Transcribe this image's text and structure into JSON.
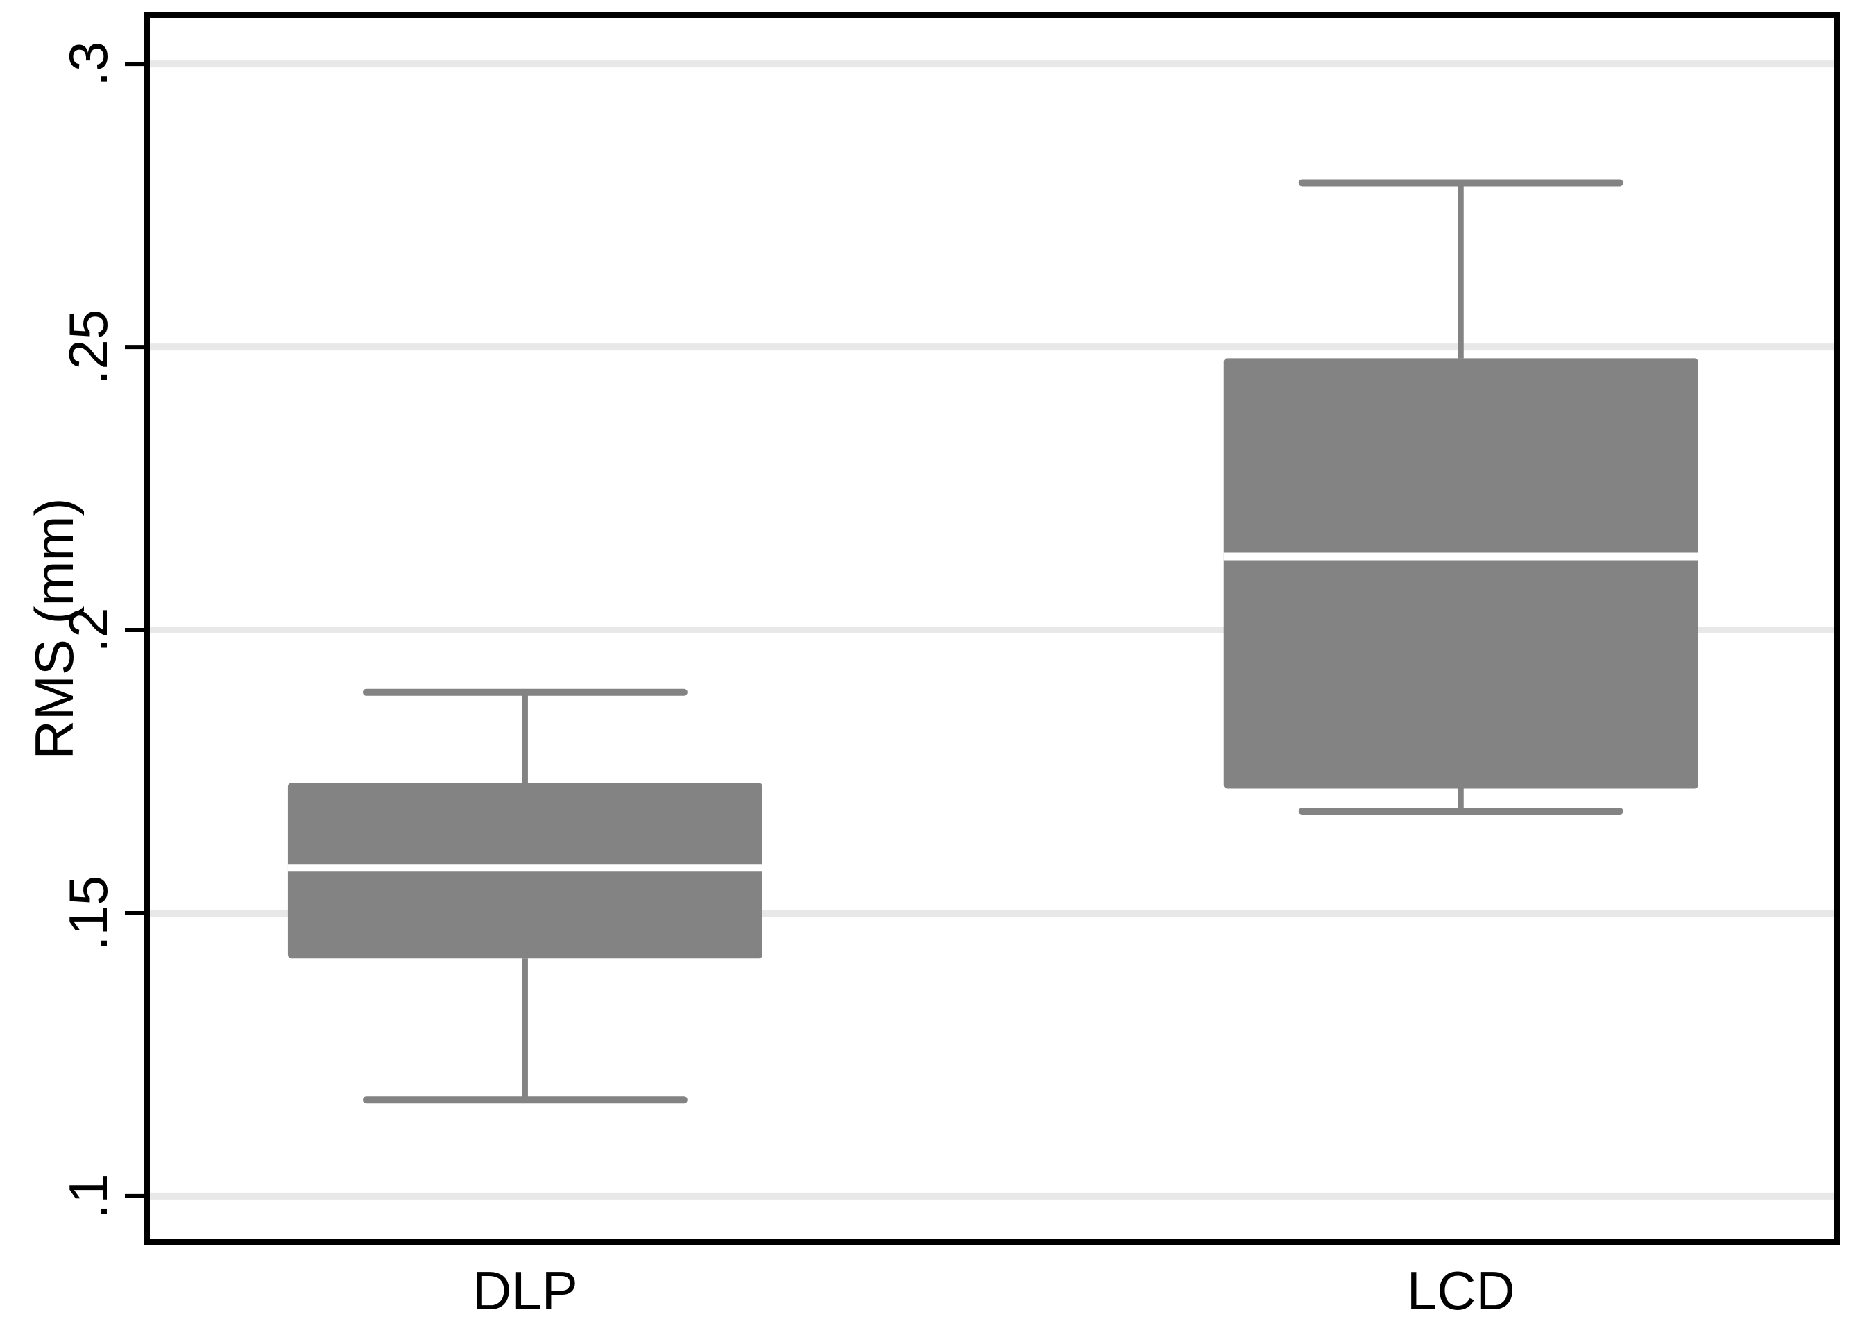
{
  "figure": {
    "background": "#ffffff"
  },
  "chart_data": {
    "type": "boxplot",
    "title": "",
    "xlabel": "",
    "ylabel": "RMS (mm)",
    "categories": [
      "DLP",
      "LCD"
    ],
    "series": [
      {
        "name": "DLP",
        "whisker_low": 0.117,
        "q1": 0.142,
        "median": 0.158,
        "q3": 0.173,
        "whisker_high": 0.189
      },
      {
        "name": "LCD",
        "whisker_low": 0.168,
        "q1": 0.172,
        "median": 0.213,
        "q3": 0.248,
        "whisker_high": 0.279
      }
    ],
    "yticks": [
      {
        "value": 0.1,
        "label": ".1"
      },
      {
        "value": 0.15,
        "label": ".15"
      },
      {
        "value": 0.2,
        "label": ".2"
      },
      {
        "value": 0.25,
        "label": ".25"
      },
      {
        "value": 0.3,
        "label": ".3"
      }
    ],
    "ylim": [
      0.0919,
      0.3086
    ],
    "grid": true,
    "legend": "none",
    "colors": {
      "box_fill": "#838383",
      "whisker": "#838383",
      "median_line": "#ffffff",
      "gridline": "#e8e8e8",
      "axis": "#000000",
      "text": "#000000"
    }
  }
}
